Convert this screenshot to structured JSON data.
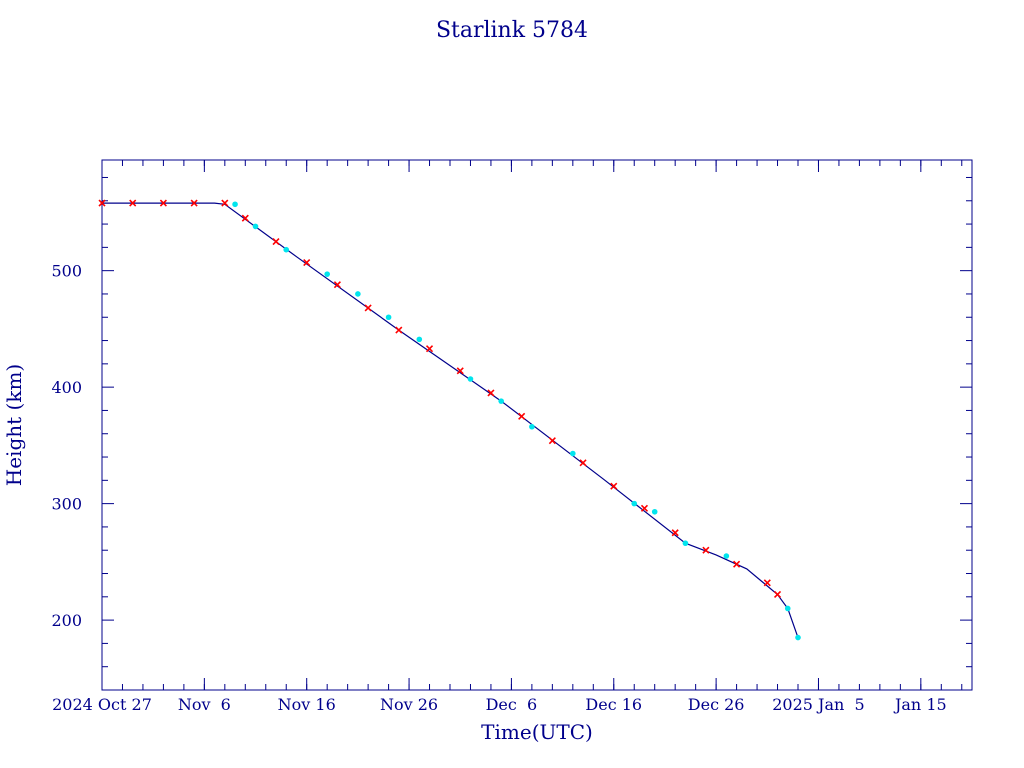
{
  "chart_data": {
    "type": "line",
    "title": "Starlink 5784",
    "xlabel": "Time(UTC)",
    "ylabel": "Height (km)",
    "x_unit": "date",
    "xlim": [
      "2024-10-27",
      "2025-01-20"
    ],
    "ylim": [
      140,
      595
    ],
    "grid": false,
    "x_ticks": [
      {
        "date": "2024-10-27",
        "label": "2024 Oct 27"
      },
      {
        "date": "2024-11-06",
        "label": "Nov  6"
      },
      {
        "date": "2024-11-16",
        "label": "Nov 16"
      },
      {
        "date": "2024-11-26",
        "label": "Nov 26"
      },
      {
        "date": "2024-12-06",
        "label": "Dec  6"
      },
      {
        "date": "2024-12-16",
        "label": "Dec 16"
      },
      {
        "date": "2024-12-26",
        "label": "Dec 26"
      },
      {
        "date": "2025-01-05",
        "label": "2025 Jan  5"
      },
      {
        "date": "2025-01-15",
        "label": "Jan 15"
      }
    ],
    "y_ticks": [
      200,
      300,
      400,
      500
    ],
    "series": [
      {
        "color": "#ff0000",
        "marker": "x",
        "x": [
          "2024-10-27",
          "2024-10-30",
          "2024-11-02",
          "2024-11-05",
          "2024-11-08",
          "2024-11-10",
          "2024-11-13",
          "2024-11-16",
          "2024-11-19",
          "2024-11-22",
          "2024-11-25",
          "2024-11-28",
          "2024-12-01",
          "2024-12-04",
          "2024-12-07",
          "2024-12-10",
          "2024-12-13",
          "2024-12-16",
          "2024-12-19",
          "2024-12-22",
          "2024-12-25",
          "2024-12-28",
          "2024-12-31",
          "2025-01-01"
        ],
        "y": [
          558,
          558,
          558,
          558,
          558,
          545,
          525,
          507,
          488,
          468,
          449,
          433,
          414,
          395,
          375,
          354,
          335,
          315,
          296,
          275,
          260,
          248,
          232,
          222
        ]
      },
      {
        "color": "#00e5ee",
        "marker": "dot",
        "x": [
          "2024-11-09",
          "2024-11-11",
          "2024-11-14",
          "2024-11-18",
          "2024-11-21",
          "2024-11-24",
          "2024-11-27",
          "2024-12-02",
          "2024-12-05",
          "2024-12-08",
          "2024-12-12",
          "2024-12-18",
          "2024-12-20",
          "2024-12-23",
          "2024-12-27",
          "2025-01-02",
          "2025-01-03"
        ],
        "y": [
          557,
          538,
          518,
          497,
          480,
          460,
          441,
          407,
          388,
          366,
          343,
          300,
          293,
          266,
          255,
          210,
          185
        ]
      },
      {
        "color": "#00008b",
        "marker": "none",
        "x": [
          "2024-10-27",
          "2024-11-07",
          "2024-11-08",
          "2024-11-15",
          "2024-11-25",
          "2024-12-05",
          "2024-12-15",
          "2024-12-23",
          "2024-12-26",
          "2024-12-29",
          "2025-01-01",
          "2025-01-02",
          "2025-01-03"
        ],
        "y": [
          558,
          558,
          557,
          512,
          449,
          388,
          321,
          266,
          256,
          244,
          222,
          210,
          185
        ]
      }
    ]
  }
}
